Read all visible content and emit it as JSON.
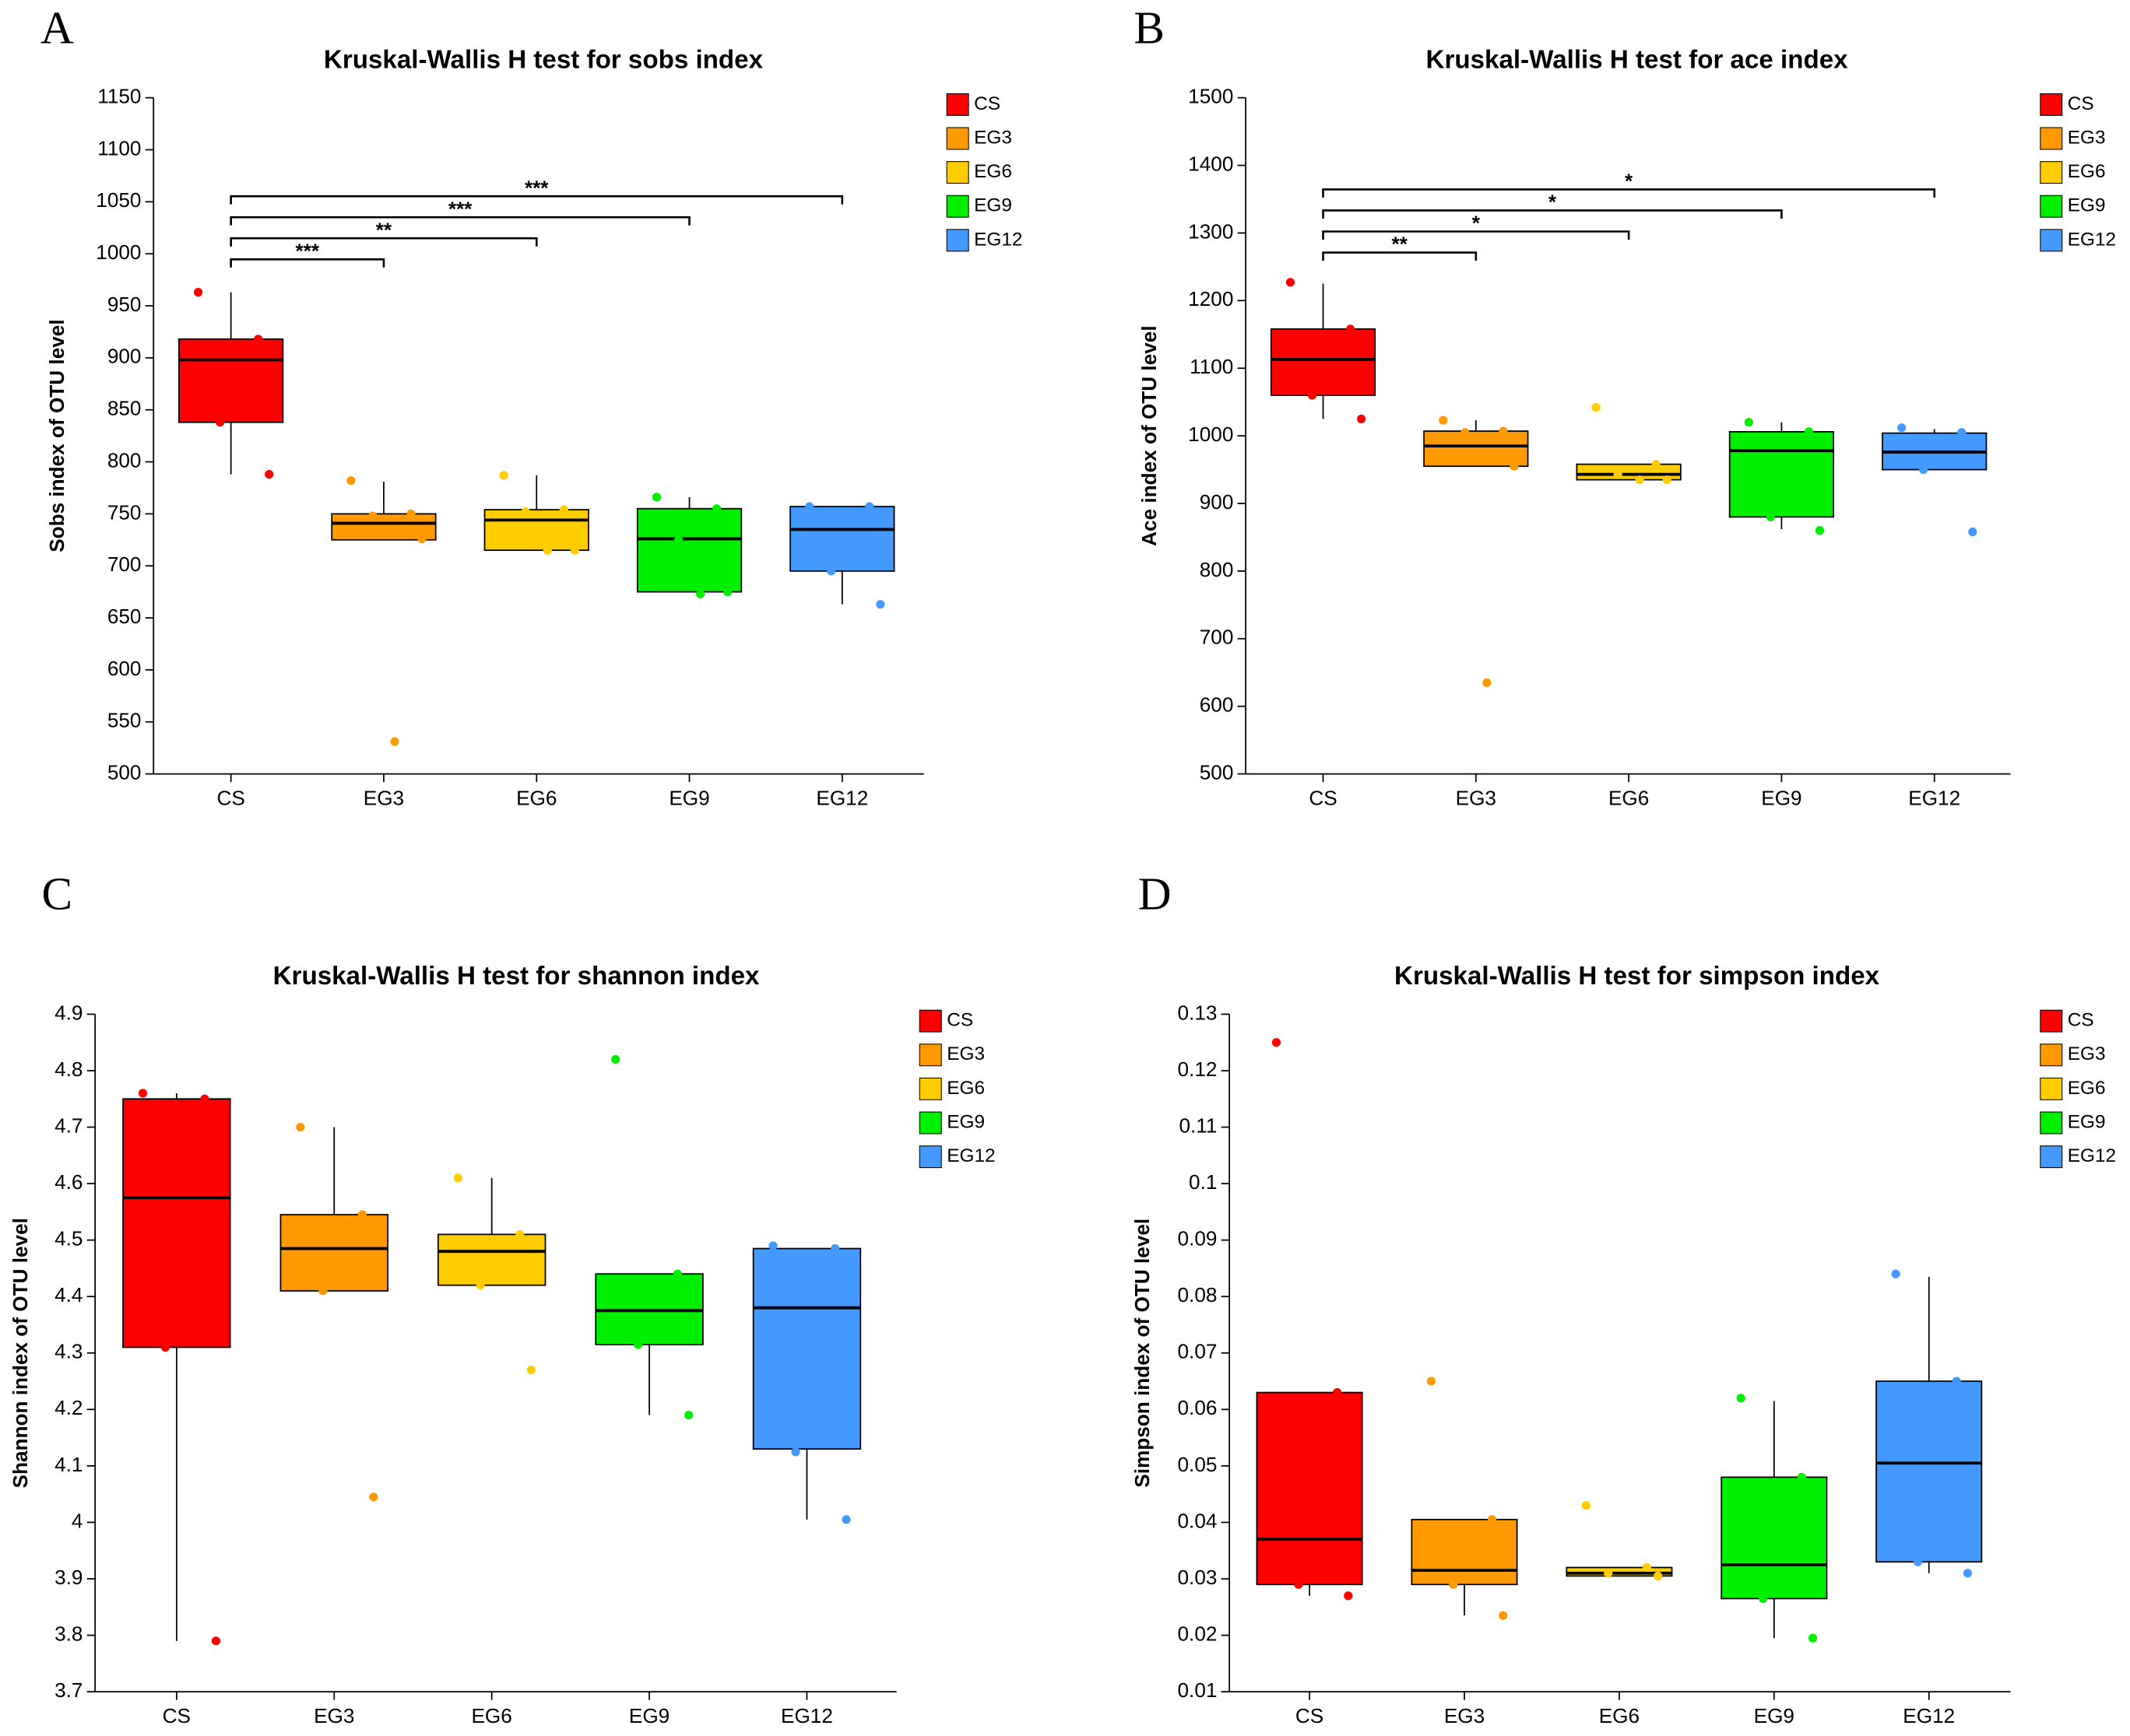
{
  "chart_data": [
    {
      "type": "box",
      "panel": "A",
      "title": "Kruskal-Wallis H test for sobs index",
      "ylabel": "Sobs index of OTU level",
      "categories": [
        "CS",
        "EG3",
        "EG6",
        "EG9",
        "EG12"
      ],
      "ylim": [
        500,
        1150
      ],
      "yticks": [
        500,
        550,
        600,
        650,
        700,
        750,
        800,
        850,
        900,
        950,
        1000,
        1050,
        1100,
        1150
      ],
      "series": [
        {
          "name": "CS",
          "color": "#ff0000",
          "min": 788,
          "q1": 838,
          "median": 898,
          "q3": 918,
          "max": 963,
          "points": [
            963,
            918,
            838,
            788
          ]
        },
        {
          "name": "EG3",
          "color": "#ff9900",
          "min": 725,
          "q1": 725,
          "median": 741,
          "q3": 750,
          "max": 781,
          "points": [
            782,
            750,
            748,
            726,
            531
          ]
        },
        {
          "name": "EG6",
          "color": "#ffcc00",
          "min": 715,
          "q1": 715,
          "median": 744,
          "q3": 754,
          "max": 787,
          "points": [
            787,
            754,
            752,
            715,
            715
          ]
        },
        {
          "name": "EG9",
          "color": "#00ee00",
          "min": 675,
          "q1": 675,
          "median": 726,
          "q3": 755,
          "max": 766,
          "points": [
            766,
            755,
            725,
            675,
            673
          ]
        },
        {
          "name": "EG12",
          "color": "#4499ff",
          "min": 663,
          "q1": 695,
          "median": 735,
          "q3": 757,
          "max": 757,
          "points": [
            757,
            757,
            695,
            663
          ]
        }
      ],
      "significance": [
        {
          "groups": [
            "CS",
            "EG3"
          ],
          "label": "***"
        },
        {
          "groups": [
            "CS",
            "EG6"
          ],
          "label": "**"
        },
        {
          "groups": [
            "CS",
            "EG9"
          ],
          "label": "***"
        },
        {
          "groups": [
            "CS",
            "EG12"
          ],
          "label": "***"
        }
      ]
    },
    {
      "type": "box",
      "panel": "B",
      "title": "Kruskal-Wallis H test for ace index",
      "ylabel": "Ace index of OTU level",
      "categories": [
        "CS",
        "EG3",
        "EG6",
        "EG9",
        "EG12"
      ],
      "ylim": [
        500,
        1500
      ],
      "yticks": [
        500,
        600,
        700,
        800,
        900,
        1000,
        1100,
        1200,
        1300,
        1400,
        1500
      ],
      "series": [
        {
          "name": "CS",
          "color": "#ff0000",
          "min": 1025,
          "q1": 1060,
          "median": 1113,
          "q3": 1158,
          "max": 1225,
          "points": [
            1227,
            1158,
            1060,
            1025
          ]
        },
        {
          "name": "EG3",
          "color": "#ff9900",
          "min": 955,
          "q1": 955,
          "median": 985,
          "q3": 1007,
          "max": 1023,
          "points": [
            1023,
            1007,
            1005,
            955,
            635
          ]
        },
        {
          "name": "EG6",
          "color": "#ffcc00",
          "min": 935,
          "q1": 935,
          "median": 943,
          "q3": 958,
          "max": 958,
          "points": [
            1042,
            958,
            943,
            935,
            935
          ]
        },
        {
          "name": "EG9",
          "color": "#00ee00",
          "min": 862,
          "q1": 880,
          "median": 978,
          "q3": 1006,
          "max": 1020,
          "points": [
            1020,
            1006,
            880,
            860
          ]
        },
        {
          "name": "EG12",
          "color": "#4499ff",
          "min": 950,
          "q1": 950,
          "median": 976,
          "q3": 1004,
          "max": 1010,
          "points": [
            1012,
            1005,
            950,
            858
          ]
        }
      ],
      "significance": [
        {
          "groups": [
            "CS",
            "EG3"
          ],
          "label": "**"
        },
        {
          "groups": [
            "CS",
            "EG6"
          ],
          "label": "*"
        },
        {
          "groups": [
            "CS",
            "EG9"
          ],
          "label": "*"
        },
        {
          "groups": [
            "CS",
            "EG12"
          ],
          "label": "*"
        }
      ]
    },
    {
      "type": "box",
      "panel": "C",
      "title": "Kruskal-Wallis H test for shannon index",
      "ylabel": "Shannon index of OTU level",
      "categories": [
        "CS",
        "EG3",
        "EG6",
        "EG9",
        "EG12"
      ],
      "ylim": [
        3.7,
        4.9
      ],
      "yticks": [
        3.7,
        3.8,
        3.9,
        4,
        4.1,
        4.2,
        4.3,
        4.4,
        4.5,
        4.6,
        4.7,
        4.8,
        4.9
      ],
      "series": [
        {
          "name": "CS",
          "color": "#ff0000",
          "min": 3.79,
          "q1": 4.31,
          "median": 4.575,
          "q3": 4.75,
          "max": 4.76,
          "points": [
            4.76,
            4.75,
            4.31,
            3.79
          ]
        },
        {
          "name": "EG3",
          "color": "#ff9900",
          "min": 4.41,
          "q1": 4.41,
          "median": 4.485,
          "q3": 4.545,
          "max": 4.7,
          "points": [
            4.7,
            4.545,
            4.41,
            4.045
          ]
        },
        {
          "name": "EG6",
          "color": "#ffcc00",
          "min": 4.42,
          "q1": 4.42,
          "median": 4.48,
          "q3": 4.51,
          "max": 4.61,
          "points": [
            4.61,
            4.51,
            4.42,
            4.27
          ]
        },
        {
          "name": "EG9",
          "color": "#00ee00",
          "min": 4.19,
          "q1": 4.315,
          "median": 4.375,
          "q3": 4.44,
          "max": 4.44,
          "points": [
            4.82,
            4.44,
            4.315,
            4.19
          ]
        },
        {
          "name": "EG12",
          "color": "#4499ff",
          "min": 4.005,
          "q1": 4.13,
          "median": 4.38,
          "q3": 4.485,
          "max": 4.485,
          "points": [
            4.49,
            4.485,
            4.125,
            4.005
          ]
        }
      ]
    },
    {
      "type": "box",
      "panel": "D",
      "title": "Kruskal-Wallis H test for simpson index",
      "ylabel": "Simpson index of OTU level",
      "categories": [
        "CS",
        "EG3",
        "EG6",
        "EG9",
        "EG12"
      ],
      "ylim": [
        0.01,
        0.13
      ],
      "yticks": [
        0.01,
        0.02,
        0.03,
        0.04,
        0.05,
        0.06,
        0.07,
        0.08,
        0.09,
        0.1,
        0.11,
        0.12,
        0.13
      ],
      "series": [
        {
          "name": "CS",
          "color": "#ff0000",
          "min": 0.027,
          "q1": 0.029,
          "median": 0.037,
          "q3": 0.063,
          "max": 0.063,
          "points": [
            0.125,
            0.063,
            0.029,
            0.027
          ]
        },
        {
          "name": "EG3",
          "color": "#ff9900",
          "min": 0.0235,
          "q1": 0.029,
          "median": 0.0315,
          "q3": 0.0405,
          "max": 0.0405,
          "points": [
            0.065,
            0.0405,
            0.029,
            0.0235
          ]
        },
        {
          "name": "EG6",
          "color": "#ffcc00",
          "min": 0.0305,
          "q1": 0.0305,
          "median": 0.031,
          "q3": 0.032,
          "max": 0.032,
          "points": [
            0.043,
            0.032,
            0.031,
            0.0305
          ]
        },
        {
          "name": "EG9",
          "color": "#00ee00",
          "min": 0.0195,
          "q1": 0.0265,
          "median": 0.0325,
          "q3": 0.048,
          "max": 0.0615,
          "points": [
            0.062,
            0.048,
            0.0265,
            0.0195
          ]
        },
        {
          "name": "EG12",
          "color": "#4499ff",
          "min": 0.031,
          "q1": 0.033,
          "median": 0.0505,
          "q3": 0.065,
          "max": 0.0835,
          "points": [
            0.084,
            0.065,
            0.033,
            0.031
          ]
        }
      ]
    }
  ]
}
